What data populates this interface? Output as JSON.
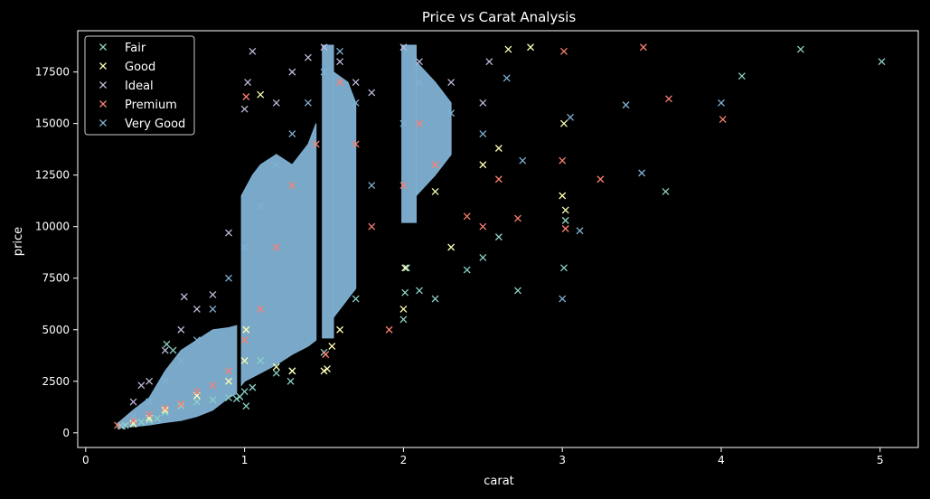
{
  "chart_data": {
    "type": "scatter",
    "title": "Price vs Carat Analysis",
    "xlabel": "carat",
    "ylabel": "price",
    "xlim": [
      -0.05,
      5.24
    ],
    "ylim": [
      -710,
      19500
    ],
    "xticks": [
      0,
      1,
      2,
      3,
      4,
      5
    ],
    "yticks": [
      0,
      2500,
      5000,
      7500,
      10000,
      12500,
      15000,
      17500
    ],
    "grid": false,
    "legend_position": "top-left",
    "marker": "x",
    "background": "#000000",
    "series": [
      {
        "name": "Fair",
        "color": "#8dd3c7",
        "points": [
          [
            0.22,
            337
          ],
          [
            0.25,
            360
          ],
          [
            0.3,
            420
          ],
          [
            0.35,
            520
          ],
          [
            0.4,
            600
          ],
          [
            0.45,
            700
          ],
          [
            0.5,
            1000
          ],
          [
            0.51,
            4300
          ],
          [
            0.55,
            4000
          ],
          [
            0.6,
            1300
          ],
          [
            0.7,
            1500
          ],
          [
            0.8,
            1600
          ],
          [
            0.9,
            1700
          ],
          [
            0.95,
            1650
          ],
          [
            0.97,
            1750
          ],
          [
            1.0,
            2000
          ],
          [
            1.01,
            1300
          ],
          [
            1.05,
            2200
          ],
          [
            1.1,
            3500
          ],
          [
            1.2,
            2900
          ],
          [
            1.29,
            2500
          ],
          [
            1.3,
            3000
          ],
          [
            1.5,
            3900
          ],
          [
            1.7,
            6500
          ],
          [
            2.0,
            5500
          ],
          [
            2.01,
            6800
          ],
          [
            2.02,
            8000
          ],
          [
            2.1,
            6900
          ],
          [
            2.2,
            6500
          ],
          [
            2.4,
            7900
          ],
          [
            2.5,
            8500
          ],
          [
            2.6,
            9500
          ],
          [
            2.72,
            6900
          ],
          [
            3.01,
            8000
          ],
          [
            3.02,
            10300
          ],
          [
            3.65,
            11700
          ],
          [
            4.13,
            17300
          ],
          [
            4.5,
            18600
          ],
          [
            5.01,
            18000
          ]
        ]
      },
      {
        "name": "Good",
        "color": "#ffffb3",
        "points": [
          [
            0.23,
            327
          ],
          [
            0.3,
            450
          ],
          [
            0.4,
            700
          ],
          [
            0.5,
            1100
          ],
          [
            0.7,
            1800
          ],
          [
            0.9,
            2500
          ],
          [
            1.0,
            3500
          ],
          [
            1.01,
            5000
          ],
          [
            1.1,
            16400
          ],
          [
            1.2,
            3200
          ],
          [
            1.3,
            3000
          ],
          [
            1.5,
            3000
          ],
          [
            1.52,
            3100
          ],
          [
            1.55,
            4200
          ],
          [
            1.6,
            5000
          ],
          [
            2.0,
            6000
          ],
          [
            2.01,
            8000
          ],
          [
            2.2,
            11700
          ],
          [
            2.3,
            9000
          ],
          [
            2.5,
            13000
          ],
          [
            2.6,
            13800
          ],
          [
            2.66,
            18600
          ],
          [
            2.8,
            18700
          ],
          [
            3.0,
            11500
          ],
          [
            3.01,
            15000
          ],
          [
            3.02,
            10800
          ]
        ]
      },
      {
        "name": "Ideal",
        "color": "#bebada",
        "points": [
          [
            0.23,
            340
          ],
          [
            0.3,
            1500
          ],
          [
            0.35,
            2300
          ],
          [
            0.4,
            2500
          ],
          [
            0.5,
            4000
          ],
          [
            0.6,
            5000
          ],
          [
            0.62,
            6600
          ],
          [
            0.7,
            6000
          ],
          [
            0.8,
            6700
          ],
          [
            0.9,
            9700
          ],
          [
            1.0,
            15700
          ],
          [
            1.02,
            17000
          ],
          [
            1.05,
            18500
          ],
          [
            1.2,
            16000
          ],
          [
            1.3,
            17500
          ],
          [
            1.4,
            18200
          ],
          [
            1.5,
            18700
          ],
          [
            1.6,
            18000
          ],
          [
            1.7,
            17000
          ],
          [
            1.8,
            16500
          ],
          [
            2.0,
            18700
          ],
          [
            2.1,
            18000
          ],
          [
            2.3,
            17000
          ],
          [
            2.5,
            16000
          ],
          [
            2.54,
            18000
          ]
        ]
      },
      {
        "name": "Premium",
        "color": "#fb8072",
        "points": [
          [
            0.2,
            367
          ],
          [
            0.3,
            600
          ],
          [
            0.4,
            900
          ],
          [
            0.5,
            1200
          ],
          [
            0.6,
            1400
          ],
          [
            0.7,
            2000
          ],
          [
            0.8,
            2300
          ],
          [
            0.9,
            3000
          ],
          [
            1.0,
            4500
          ],
          [
            1.01,
            16300
          ],
          [
            1.1,
            6000
          ],
          [
            1.2,
            9000
          ],
          [
            1.3,
            12000
          ],
          [
            1.45,
            14000
          ],
          [
            1.51,
            3800
          ],
          [
            1.6,
            17000
          ],
          [
            1.7,
            14000
          ],
          [
            1.8,
            10000
          ],
          [
            1.91,
            5000
          ],
          [
            2.0,
            12000
          ],
          [
            2.1,
            15000
          ],
          [
            2.2,
            13000
          ],
          [
            2.4,
            10500
          ],
          [
            2.5,
            10000
          ],
          [
            2.6,
            12300
          ],
          [
            2.72,
            10400
          ],
          [
            3.0,
            13200
          ],
          [
            3.01,
            18500
          ],
          [
            3.02,
            9900
          ],
          [
            3.24,
            12300
          ],
          [
            3.51,
            18700
          ],
          [
            3.67,
            16200
          ],
          [
            4.01,
            15200
          ]
        ]
      },
      {
        "name": "Very Good",
        "color": "#80b1d3",
        "points": [
          [
            0.23,
            357
          ],
          [
            0.3,
            800
          ],
          [
            0.4,
            1500
          ],
          [
            0.5,
            2500
          ],
          [
            0.6,
            3500
          ],
          [
            0.7,
            4500
          ],
          [
            0.8,
            6000
          ],
          [
            0.9,
            7500
          ],
          [
            1.0,
            9000
          ],
          [
            1.1,
            11000
          ],
          [
            1.2,
            13000
          ],
          [
            1.3,
            14500
          ],
          [
            1.4,
            16000
          ],
          [
            1.5,
            17500
          ],
          [
            1.6,
            18500
          ],
          [
            1.7,
            16000
          ],
          [
            1.8,
            12000
          ],
          [
            2.0,
            15000
          ],
          [
            2.1,
            17000
          ],
          [
            2.3,
            15500
          ],
          [
            2.5,
            14500
          ],
          [
            2.65,
            17200
          ],
          [
            2.75,
            13200
          ],
          [
            3.0,
            6500
          ],
          [
            3.05,
            15300
          ],
          [
            3.11,
            9800
          ],
          [
            3.4,
            15900
          ],
          [
            3.5,
            12600
          ],
          [
            4.0,
            16000
          ]
        ]
      }
    ],
    "dense_bands": [
      {
        "name": "Very Good",
        "color": "#80b1d3",
        "upper": [
          [
            0.2,
            450
          ],
          [
            0.3,
            1100
          ],
          [
            0.4,
            1700
          ],
          [
            0.5,
            3000
          ],
          [
            0.6,
            4000
          ],
          [
            0.7,
            4500
          ],
          [
            0.8,
            5000
          ],
          [
            0.9,
            5100
          ],
          [
            0.95,
            5200
          ]
        ],
        "lower": [
          [
            0.95,
            1900
          ],
          [
            0.9,
            1700
          ],
          [
            0.8,
            1100
          ],
          [
            0.7,
            800
          ],
          [
            0.6,
            600
          ],
          [
            0.5,
            500
          ],
          [
            0.4,
            380
          ],
          [
            0.3,
            300
          ],
          [
            0.2,
            280
          ]
        ]
      },
      {
        "name": "Very Good",
        "color": "#80b1d3",
        "upper": [
          [
            0.98,
            11500
          ],
          [
            1.05,
            12500
          ],
          [
            1.1,
            13000
          ],
          [
            1.2,
            13500
          ],
          [
            1.3,
            13000
          ],
          [
            1.4,
            14000
          ],
          [
            1.45,
            15000
          ]
        ],
        "lower": [
          [
            1.45,
            4500
          ],
          [
            1.4,
            4200
          ],
          [
            1.3,
            3800
          ],
          [
            1.2,
            3300
          ],
          [
            1.1,
            2900
          ],
          [
            1.0,
            2500
          ],
          [
            0.98,
            2300
          ]
        ]
      },
      {
        "name": "Very Good",
        "color": "#80b1d3",
        "upper": [
          [
            1.49,
            18800
          ],
          [
            1.56,
            18800
          ]
        ],
        "lower": [
          [
            1.56,
            4600
          ],
          [
            1.49,
            4600
          ]
        ]
      },
      {
        "name": "Very Good",
        "color": "#80b1d3",
        "upper": [
          [
            1.56,
            17500
          ],
          [
            1.65,
            17000
          ],
          [
            1.7,
            16000
          ]
        ],
        "lower": [
          [
            1.7,
            7000
          ],
          [
            1.65,
            6500
          ],
          [
            1.56,
            5600
          ]
        ]
      },
      {
        "name": "Very Good",
        "color": "#80b1d3",
        "upper": [
          [
            1.99,
            18800
          ],
          [
            2.08,
            18800
          ]
        ],
        "lower": [
          [
            2.08,
            10200
          ],
          [
            1.99,
            10200
          ]
        ]
      },
      {
        "name": "Very Good",
        "color": "#80b1d3",
        "upper": [
          [
            2.08,
            18000
          ],
          [
            2.2,
            17000
          ],
          [
            2.3,
            16000
          ]
        ],
        "lower": [
          [
            2.3,
            13500
          ],
          [
            2.2,
            12500
          ],
          [
            2.08,
            11500
          ]
        ]
      }
    ]
  }
}
